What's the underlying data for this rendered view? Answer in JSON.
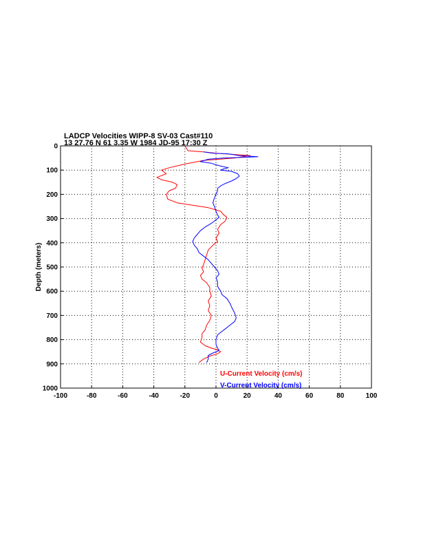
{
  "chart_data": {
    "type": "line",
    "title_lines": [
      "LADCP Velocities WIPP-8 SV-03 Cast#110",
      "13 27.76 N  61  3.35 W  1984 JD-95 17:30 Z"
    ],
    "xlabel": "",
    "ylabel": "Depth (meters)",
    "xlim": [
      -100,
      100
    ],
    "ylim": [
      0,
      1000
    ],
    "y_reversed": true,
    "grid": true,
    "legend_placement": "bottom-right",
    "xticks": [
      "-100",
      "-80",
      "-60",
      "-40",
      "-20",
      "0",
      "20",
      "40",
      "60",
      "80",
      "100"
    ],
    "yticks": [
      "0",
      "100",
      "200",
      "300",
      "400",
      "500",
      "600",
      "700",
      "800",
      "900",
      "1000"
    ],
    "series": [
      {
        "name": "U-Current Velocity (cm/s)",
        "color": "#ff0000",
        "points": [
          [
            -20,
            0
          ],
          [
            -18,
            20
          ],
          [
            -8,
            25
          ],
          [
            0,
            30
          ],
          [
            10,
            35
          ],
          [
            22,
            40
          ],
          [
            12,
            50
          ],
          [
            2,
            55
          ],
          [
            -8,
            60
          ],
          [
            -20,
            75
          ],
          [
            -30,
            90
          ],
          [
            -35,
            100
          ],
          [
            -32,
            115
          ],
          [
            -38,
            130
          ],
          [
            -35,
            140
          ],
          [
            -28,
            150
          ],
          [
            -25,
            160
          ],
          [
            -26,
            175
          ],
          [
            -30,
            185
          ],
          [
            -32,
            200
          ],
          [
            -31,
            220
          ],
          [
            -25,
            235
          ],
          [
            -15,
            245
          ],
          [
            -5,
            255
          ],
          [
            3,
            270
          ],
          [
            5,
            285
          ],
          [
            7,
            295
          ],
          [
            6,
            310
          ],
          [
            3,
            325
          ],
          [
            1,
            345
          ],
          [
            2,
            360
          ],
          [
            0,
            380
          ],
          [
            1,
            395
          ],
          [
            -2,
            410
          ],
          [
            -5,
            430
          ],
          [
            -6,
            450
          ],
          [
            -7,
            470
          ],
          [
            -8,
            490
          ],
          [
            -9,
            505
          ],
          [
            -8,
            520
          ],
          [
            -10,
            535
          ],
          [
            -9,
            550
          ],
          [
            -6,
            565
          ],
          [
            -4,
            585
          ],
          [
            -4,
            600
          ],
          [
            -3,
            620
          ],
          [
            -5,
            640
          ],
          [
            -4,
            660
          ],
          [
            -5,
            680
          ],
          [
            -3,
            700
          ],
          [
            -4,
            720
          ],
          [
            -6,
            740
          ],
          [
            -7,
            760
          ],
          [
            -9,
            775
          ],
          [
            -9,
            790
          ],
          [
            -10,
            810
          ],
          [
            -7,
            825
          ],
          [
            -3,
            835
          ],
          [
            1,
            842
          ],
          [
            3,
            850
          ],
          [
            1,
            858
          ],
          [
            -4,
            868
          ],
          [
            -8,
            880
          ],
          [
            -11,
            895
          ]
        ]
      },
      {
        "name": "V-Current Velocity (cm/s)",
        "color": "#0000ff",
        "points": [
          [
            -8,
            25
          ],
          [
            -2,
            30
          ],
          [
            8,
            33
          ],
          [
            15,
            40
          ],
          [
            27,
            45
          ],
          [
            15,
            48
          ],
          [
            5,
            50
          ],
          [
            -5,
            55
          ],
          [
            -10,
            65
          ],
          [
            -3,
            72
          ],
          [
            0,
            78
          ],
          [
            4,
            85
          ],
          [
            8,
            90
          ],
          [
            5,
            95
          ],
          [
            3,
            100
          ],
          [
            10,
            105
          ],
          [
            14,
            115
          ],
          [
            15,
            125
          ],
          [
            13,
            135
          ],
          [
            10,
            145
          ],
          [
            6,
            155
          ],
          [
            3,
            165
          ],
          [
            1,
            175
          ],
          [
            1,
            185
          ],
          [
            0,
            200
          ],
          [
            -1,
            215
          ],
          [
            -2,
            235
          ],
          [
            -1,
            250
          ],
          [
            0,
            270
          ],
          [
            1,
            285
          ],
          [
            2,
            295
          ],
          [
            0,
            305
          ],
          [
            -3,
            320
          ],
          [
            -7,
            335
          ],
          [
            -10,
            350
          ],
          [
            -12,
            365
          ],
          [
            -14,
            380
          ],
          [
            -15,
            395
          ],
          [
            -14,
            410
          ],
          [
            -12,
            425
          ],
          [
            -11,
            440
          ],
          [
            -8,
            455
          ],
          [
            -5,
            470
          ],
          [
            -3,
            485
          ],
          [
            -1,
            500
          ],
          [
            1,
            515
          ],
          [
            2,
            530
          ],
          [
            0,
            545
          ],
          [
            1,
            560
          ],
          [
            1,
            580
          ],
          [
            3,
            600
          ],
          [
            4,
            615
          ],
          [
            7,
            630
          ],
          [
            9,
            650
          ],
          [
            10,
            665
          ],
          [
            12,
            690
          ],
          [
            13,
            710
          ],
          [
            12,
            725
          ],
          [
            9,
            740
          ],
          [
            6,
            755
          ],
          [
            3,
            770
          ],
          [
            1,
            780
          ],
          [
            0,
            800
          ],
          [
            0,
            820
          ],
          [
            1,
            835
          ],
          [
            2,
            845
          ],
          [
            -2,
            855
          ],
          [
            -5,
            865
          ],
          [
            -5,
            880
          ],
          [
            -6,
            895
          ]
        ]
      }
    ]
  }
}
